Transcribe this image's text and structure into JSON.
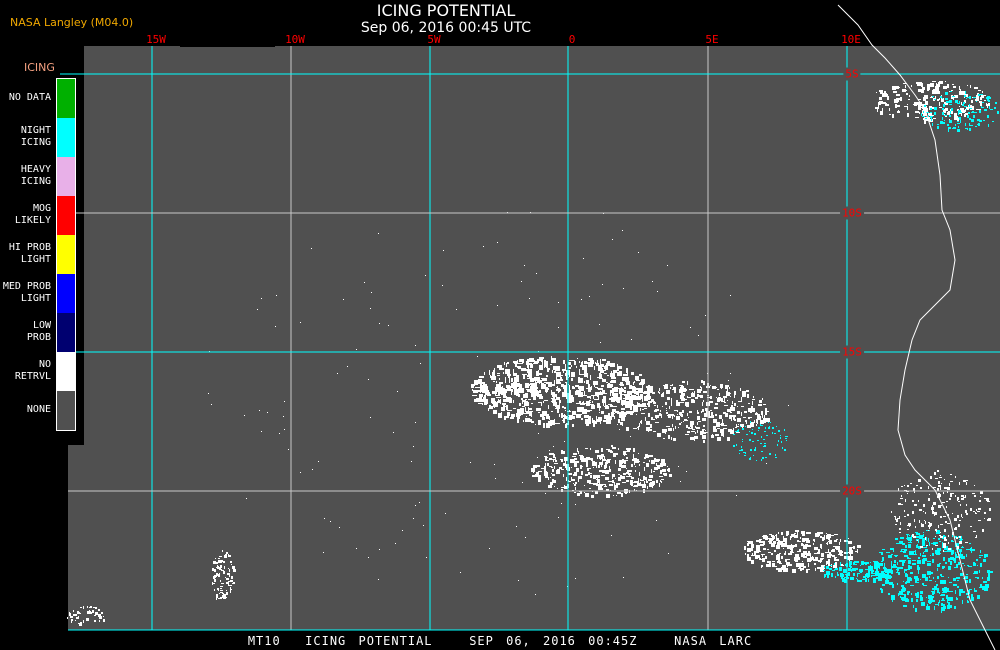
{
  "header": {
    "org": "NASA Langley (M04.0)",
    "title": "ICING POTENTIAL",
    "subtitle": "Sep 06, 2016 00:45 UTC"
  },
  "map": {
    "background_color": "#505050",
    "grid_color": "#00ffff",
    "lon_labels": [
      "15W",
      "10W",
      "5W",
      "0",
      "5E",
      "10E"
    ],
    "lat_labels": [
      "5S",
      "10S",
      "15S",
      "20S"
    ]
  },
  "legend": {
    "title": "ICING",
    "items": [
      {
        "label": "NO DATA",
        "color": "#00b000"
      },
      {
        "label": "NIGHT\nICING",
        "color": "#00ffff"
      },
      {
        "label": "HEAVY\nICING",
        "color": "#e8b0e8"
      },
      {
        "label": "MOG\nLIKELY",
        "color": "#ff0000"
      },
      {
        "label": "HI PROB\nLIGHT",
        "color": "#ffff00"
      },
      {
        "label": "MED PROB\nLIGHT",
        "color": "#0000ff"
      },
      {
        "label": "LOW\nPROB",
        "color": "#000070"
      },
      {
        "label": "NO\nRETRVL",
        "color": "#ffffff"
      },
      {
        "label": "NONE",
        "color": "#505050"
      }
    ]
  },
  "footer": {
    "text": "MT10  ICING POTENTIAL   SEP 06, 2016 00:45Z   NASA LARC"
  }
}
